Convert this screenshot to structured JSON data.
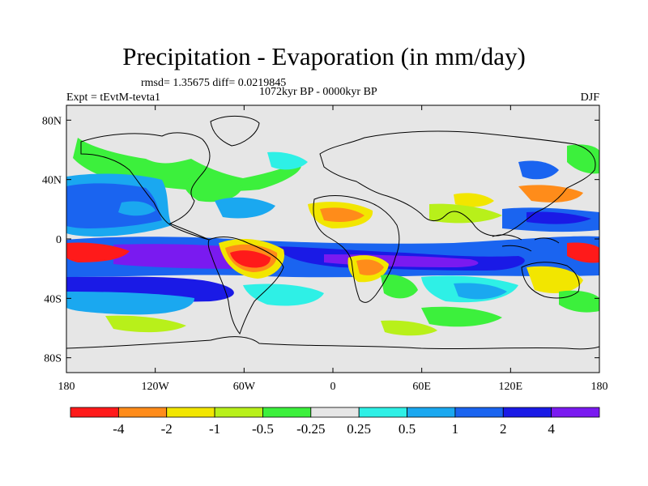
{
  "title": "Precipitation - Evaporation (in mm/day)",
  "stats_line": "rmsd= 1.35675 diff= 0.0219845",
  "period_line": "1072kyr BP - 0000kyr BP",
  "expt_line": "Expt = tEvtM-tevta1",
  "season": "DJF",
  "map": {
    "projection": "cylindrical-equidistant",
    "lon_range": [
      -180,
      180
    ],
    "lat_range": [
      -90,
      90
    ],
    "background_color": "#e6e6e6",
    "coastline_color": "#000000",
    "x_ticks": [
      {
        "value": -180,
        "label": "180"
      },
      {
        "value": -120,
        "label": "120W"
      },
      {
        "value": -60,
        "label": "60W"
      },
      {
        "value": 0,
        "label": "0"
      },
      {
        "value": 60,
        "label": "60E"
      },
      {
        "value": 120,
        "label": "120E"
      },
      {
        "value": 180,
        "label": "180"
      }
    ],
    "y_ticks": [
      {
        "value": 80,
        "label": "80N"
      },
      {
        "value": 40,
        "label": "40N"
      },
      {
        "value": 0,
        "label": "0"
      },
      {
        "value": -40,
        "label": "40S"
      },
      {
        "value": -80,
        "label": "80S"
      }
    ]
  },
  "colorbar": {
    "colors": [
      "#ff1a1a",
      "#ff8c1a",
      "#f2e600",
      "#b8f01a",
      "#3cf03c",
      "#e6e6e6",
      "#2ef0e6",
      "#1aa8f0",
      "#1a64f0",
      "#1a1ae6",
      "#7a1af0"
    ],
    "labels": [
      "-4",
      "-2",
      "-1",
      "-0.5",
      "-0.25",
      "0.25",
      "0.5",
      "1",
      "2",
      "4"
    ]
  }
}
